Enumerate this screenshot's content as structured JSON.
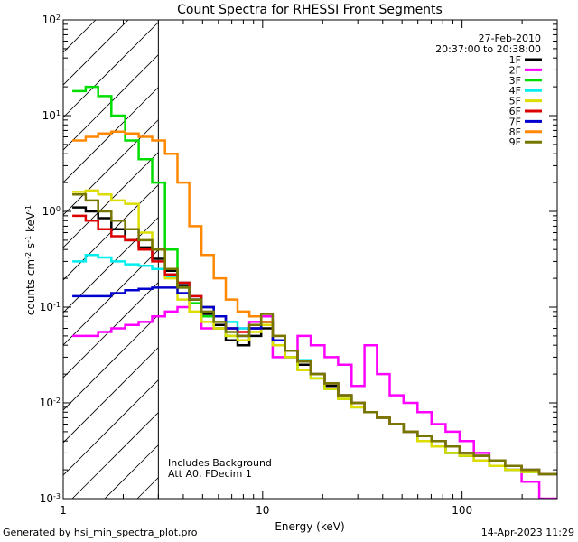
{
  "footer": {
    "generated_by": "Generated by hsi_min_spectra_plot.pro",
    "timestamp": "14-Apr-2023 11:29"
  },
  "chart_data": {
    "type": "line",
    "title": "Count Spectra for RHESSI Front Segments",
    "xlabel": "Energy (keV)",
    "ylabel": "counts cm^-2 s^-1 keV^-1",
    "xscale": "log",
    "yscale": "log",
    "xlim": [
      1,
      300
    ],
    "ylim": [
      0.001,
      100
    ],
    "x_ticks": [
      {
        "value": 1,
        "label": "1"
      },
      {
        "value": 10,
        "label": "10"
      },
      {
        "value": 100,
        "label": "100"
      }
    ],
    "y_ticks": [
      {
        "value": 0.001,
        "mant": "10",
        "exp": "-3"
      },
      {
        "value": 0.01,
        "mant": "10",
        "exp": "-2"
      },
      {
        "value": 0.1,
        "mant": "10",
        "exp": "-1"
      },
      {
        "value": 1,
        "mant": "10",
        "exp": "0"
      },
      {
        "value": 10,
        "mant": "10",
        "exp": "1"
      },
      {
        "value": 100,
        "mant": "10",
        "exp": "2"
      }
    ],
    "date": "27-Feb-2010",
    "time_range": "20:37:00 to 20:38:00",
    "annotations": [
      "Includes Background",
      "Att A0, FDecim 1"
    ],
    "hatched_region_keV": [
      1,
      3
    ],
    "legend_position": "top-right",
    "series": [
      {
        "name": "1F",
        "color": "#000000",
        "x": [
          1.2,
          1.4,
          1.6,
          1.9,
          2.2,
          2.6,
          3.0,
          3.5,
          4.0,
          4.6,
          5.3,
          6.1,
          7.0,
          8.0,
          9.2,
          10.5,
          12,
          14,
          16,
          19,
          22,
          26,
          30,
          35,
          40,
          47,
          55,
          65,
          76,
          90,
          105,
          125,
          150,
          180,
          220,
          270
        ],
        "y": [
          1.1,
          1.0,
          0.85,
          0.65,
          0.5,
          0.42,
          0.32,
          0.24,
          0.17,
          0.12,
          0.085,
          0.065,
          0.045,
          0.04,
          0.05,
          0.06,
          0.04,
          0.03,
          0.025,
          0.02,
          0.015,
          0.012,
          0.01,
          0.008,
          0.007,
          0.006,
          0.005,
          0.004,
          0.0035,
          0.003,
          0.0028,
          0.0025,
          0.0022,
          0.002,
          0.002,
          0.0018
        ]
      },
      {
        "name": "2F",
        "color": "#ff00ff",
        "x": [
          1.2,
          1.4,
          1.6,
          1.9,
          2.2,
          2.6,
          3.0,
          3.5,
          4.0,
          4.6,
          5.3,
          6.1,
          7.0,
          8.0,
          9.2,
          10.5,
          12,
          14,
          16,
          19,
          22,
          26,
          30,
          35,
          40,
          47,
          55,
          65,
          76,
          90,
          105,
          125,
          150,
          180,
          220,
          270
        ],
        "y": [
          0.05,
          0.05,
          0.055,
          0.06,
          0.065,
          0.07,
          0.08,
          0.09,
          0.1,
          0.13,
          0.06,
          0.06,
          0.06,
          0.06,
          0.07,
          0.08,
          0.03,
          0.03,
          0.05,
          0.04,
          0.03,
          0.025,
          0.015,
          0.04,
          0.02,
          0.012,
          0.01,
          0.008,
          0.006,
          0.005,
          0.004,
          0.003,
          0.0025,
          0.002,
          0.0015,
          0.001
        ]
      },
      {
        "name": "3F",
        "color": "#00dd00",
        "x": [
          1.2,
          1.4,
          1.6,
          1.9,
          2.2,
          2.6,
          3.0,
          3.5,
          4.0,
          4.6,
          5.3,
          6.1,
          7.0,
          8.0,
          9.2,
          10.5,
          12,
          14,
          16,
          19,
          22,
          26,
          30,
          35,
          40,
          47,
          55,
          65,
          76,
          90,
          105,
          125,
          150,
          180,
          220,
          270
        ],
        "y": [
          18,
          20,
          16,
          10,
          5.5,
          3.5,
          2.0,
          0.4,
          0.16,
          0.11,
          0.08,
          0.06,
          0.05,
          0.045,
          0.06,
          0.07,
          0.04,
          0.03,
          0.022,
          0.018,
          0.014,
          0.011,
          0.009,
          0.008,
          0.007,
          0.006,
          0.005,
          0.004,
          0.0035,
          0.003,
          0.0028,
          0.0025,
          0.0022,
          0.002,
          0.0019,
          0.0018
        ]
      },
      {
        "name": "4F",
        "color": "#00eeee",
        "x": [
          1.2,
          1.4,
          1.6,
          1.9,
          2.2,
          2.6,
          3.0,
          3.5,
          4.0,
          4.6,
          5.3,
          6.1,
          7.0,
          8.0,
          9.2,
          10.5,
          12,
          14,
          16,
          19,
          22,
          26,
          30,
          35,
          40,
          47,
          55,
          65,
          76,
          90,
          105,
          125,
          150,
          180,
          220,
          270
        ],
        "y": [
          0.3,
          0.35,
          0.33,
          0.3,
          0.28,
          0.27,
          0.25,
          0.21,
          0.18,
          0.13,
          0.1,
          0.08,
          0.07,
          0.06,
          0.06,
          0.07,
          0.045,
          0.035,
          0.028,
          0.02,
          0.016,
          0.012,
          0.01,
          0.008,
          0.007,
          0.006,
          0.005,
          0.0045,
          0.004,
          0.0035,
          0.003,
          0.0028,
          0.0025,
          0.0022,
          0.002,
          0.0018
        ]
      },
      {
        "name": "5F",
        "color": "#dddd00",
        "x": [
          1.2,
          1.4,
          1.6,
          1.9,
          2.2,
          2.6,
          3.0,
          3.5,
          4.0,
          4.6,
          5.3,
          6.1,
          7.0,
          8.0,
          9.2,
          10.5,
          12,
          14,
          16,
          19,
          22,
          26,
          30,
          35,
          40,
          47,
          55,
          65,
          76,
          90,
          105,
          125,
          150,
          180,
          220,
          270
        ],
        "y": [
          1.6,
          1.65,
          1.5,
          1.3,
          1.2,
          0.6,
          0.4,
          0.2,
          0.12,
          0.09,
          0.07,
          0.06,
          0.05,
          0.045,
          0.055,
          0.065,
          0.04,
          0.03,
          0.022,
          0.018,
          0.014,
          0.011,
          0.009,
          0.008,
          0.007,
          0.006,
          0.005,
          0.004,
          0.0035,
          0.003,
          0.0028,
          0.0025,
          0.0022,
          0.002,
          0.0019,
          0.0018
        ]
      },
      {
        "name": "6F",
        "color": "#dd0000",
        "x": [
          1.2,
          1.4,
          1.6,
          1.9,
          2.2,
          2.6,
          3.0,
          3.5,
          4.0,
          4.6,
          5.3,
          6.1,
          7.0,
          8.0,
          9.2,
          10.5,
          12,
          14,
          16,
          19,
          22,
          26,
          30,
          35,
          40,
          47,
          55,
          65,
          76,
          90,
          105,
          125,
          150,
          180,
          220,
          270
        ],
        "y": [
          0.9,
          0.8,
          0.65,
          0.55,
          0.5,
          0.4,
          0.3,
          0.22,
          0.18,
          0.13,
          0.1,
          0.08,
          0.06,
          0.055,
          0.06,
          0.07,
          0.045,
          0.035,
          0.027,
          0.02,
          0.016,
          0.012,
          0.01,
          0.008,
          0.007,
          0.006,
          0.005,
          0.0045,
          0.004,
          0.0035,
          0.003,
          0.0028,
          0.0025,
          0.0022,
          0.002,
          0.0018
        ]
      },
      {
        "name": "7F",
        "color": "#0000cc",
        "x": [
          1.2,
          1.4,
          1.6,
          1.9,
          2.2,
          2.6,
          3.0,
          3.5,
          4.0,
          4.6,
          5.3,
          6.1,
          7.0,
          8.0,
          9.2,
          10.5,
          12,
          14,
          16,
          19,
          22,
          26,
          30,
          35,
          40,
          47,
          55,
          65,
          76,
          90,
          105,
          125,
          150,
          180,
          220,
          270
        ],
        "y": [
          0.13,
          0.13,
          0.13,
          0.14,
          0.15,
          0.155,
          0.16,
          0.16,
          0.14,
          0.12,
          0.1,
          0.08,
          0.06,
          0.05,
          0.06,
          0.07,
          0.045,
          0.035,
          0.027,
          0.02,
          0.016,
          0.012,
          0.01,
          0.008,
          0.007,
          0.006,
          0.005,
          0.0045,
          0.004,
          0.0035,
          0.003,
          0.0028,
          0.0025,
          0.0022,
          0.002,
          0.0018
        ]
      },
      {
        "name": "8F",
        "color": "#ff8800",
        "x": [
          1.2,
          1.4,
          1.6,
          1.9,
          2.2,
          2.6,
          3.0,
          3.5,
          4.0,
          4.6,
          5.3,
          6.1,
          7.0,
          8.0,
          9.2,
          10.5,
          12,
          14,
          16,
          19,
          22,
          26,
          30,
          35,
          40,
          47,
          55,
          65,
          76,
          90,
          105,
          125,
          150,
          180,
          220,
          270
        ],
        "y": [
          5.5,
          6.0,
          6.5,
          6.8,
          6.5,
          6.0,
          5.5,
          4.0,
          2.0,
          0.7,
          0.35,
          0.2,
          0.12,
          0.09,
          0.08,
          0.07,
          0.05,
          0.035,
          0.027,
          0.02,
          0.016,
          0.012,
          0.01,
          0.008,
          0.007,
          0.006,
          0.005,
          0.0045,
          0.004,
          0.0035,
          0.003,
          0.0028,
          0.0025,
          0.0022,
          0.002,
          0.0018
        ]
      },
      {
        "name": "9F",
        "color": "#777700",
        "x": [
          1.2,
          1.4,
          1.6,
          1.9,
          2.2,
          2.6,
          3.0,
          3.5,
          4.0,
          4.6,
          5.3,
          6.1,
          7.0,
          8.0,
          9.2,
          10.5,
          12,
          14,
          16,
          19,
          22,
          26,
          30,
          35,
          40,
          47,
          55,
          65,
          76,
          90,
          105,
          125,
          150,
          180,
          220,
          270
        ],
        "y": [
          1.5,
          1.3,
          1.0,
          0.8,
          0.65,
          0.5,
          0.4,
          0.25,
          0.16,
          0.12,
          0.09,
          0.07,
          0.055,
          0.05,
          0.065,
          0.085,
          0.05,
          0.035,
          0.027,
          0.02,
          0.016,
          0.012,
          0.01,
          0.008,
          0.007,
          0.006,
          0.005,
          0.0045,
          0.004,
          0.0035,
          0.003,
          0.0028,
          0.0025,
          0.0022,
          0.002,
          0.0018
        ]
      }
    ]
  }
}
